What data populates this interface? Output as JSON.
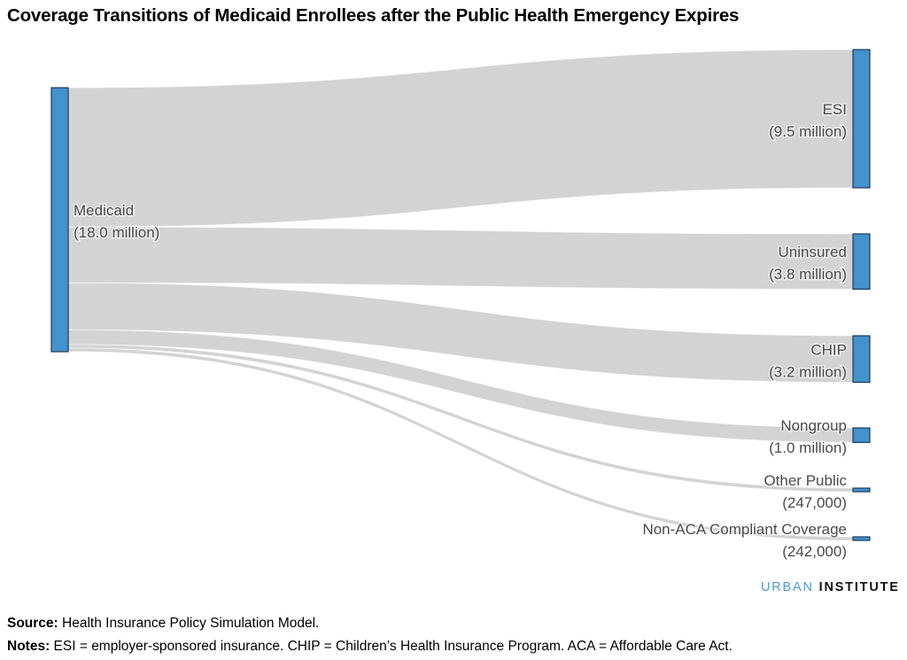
{
  "title": "Coverage Transitions of Medicaid Enrollees after the Public Health Emergency Expires",
  "chart_data": {
    "type": "sankey",
    "title": "Coverage Transitions of Medicaid Enrollees after the Public Health Emergency Expires",
    "units": "enrollees",
    "source_node": {
      "name": "Medicaid",
      "label": "(18.0 million)",
      "value": 18000000
    },
    "target_nodes": [
      {
        "name": "ESI",
        "label": "(9.5 million)",
        "value": 9500000
      },
      {
        "name": "Uninsured",
        "label": "(3.8 million)",
        "value": 3800000
      },
      {
        "name": "CHIP",
        "label": "(3.2 million)",
        "value": 3200000
      },
      {
        "name": "Nongroup",
        "label": "(1.0 million)",
        "value": 1000000
      },
      {
        "name": "Other Public",
        "label": "(247,000)",
        "value": 247000
      },
      {
        "name": "Non-ACA Compliant Coverage",
        "label": "(242,000)",
        "value": 242000
      }
    ],
    "links": [
      {
        "source": "Medicaid",
        "target": "ESI",
        "value": 9500000
      },
      {
        "source": "Medicaid",
        "target": "Uninsured",
        "value": 3800000
      },
      {
        "source": "Medicaid",
        "target": "CHIP",
        "value": 3200000
      },
      {
        "source": "Medicaid",
        "target": "Nongroup",
        "value": 1000000
      },
      {
        "source": "Medicaid",
        "target": "Other Public",
        "value": 247000
      },
      {
        "source": "Medicaid",
        "target": "Non-ACA Compliant Coverage",
        "value": 242000
      }
    ],
    "colors": {
      "node": "#4292cd",
      "node_border": "#1f3b57",
      "link": "#d3d3d3",
      "label": "#4a4a4a"
    }
  },
  "logo": {
    "part1": "URBAN",
    "part2": "INSTITUTE",
    "color1": "#4a9bd3"
  },
  "footer": {
    "source_label": "Source:",
    "source_text": " Health Insurance Policy Simulation Model.",
    "notes_label": "Notes:",
    "notes_text": " ESI = employer-sponsored insurance. CHIP = Children’s Health Insurance Program. ACA = Affordable Care Act."
  }
}
